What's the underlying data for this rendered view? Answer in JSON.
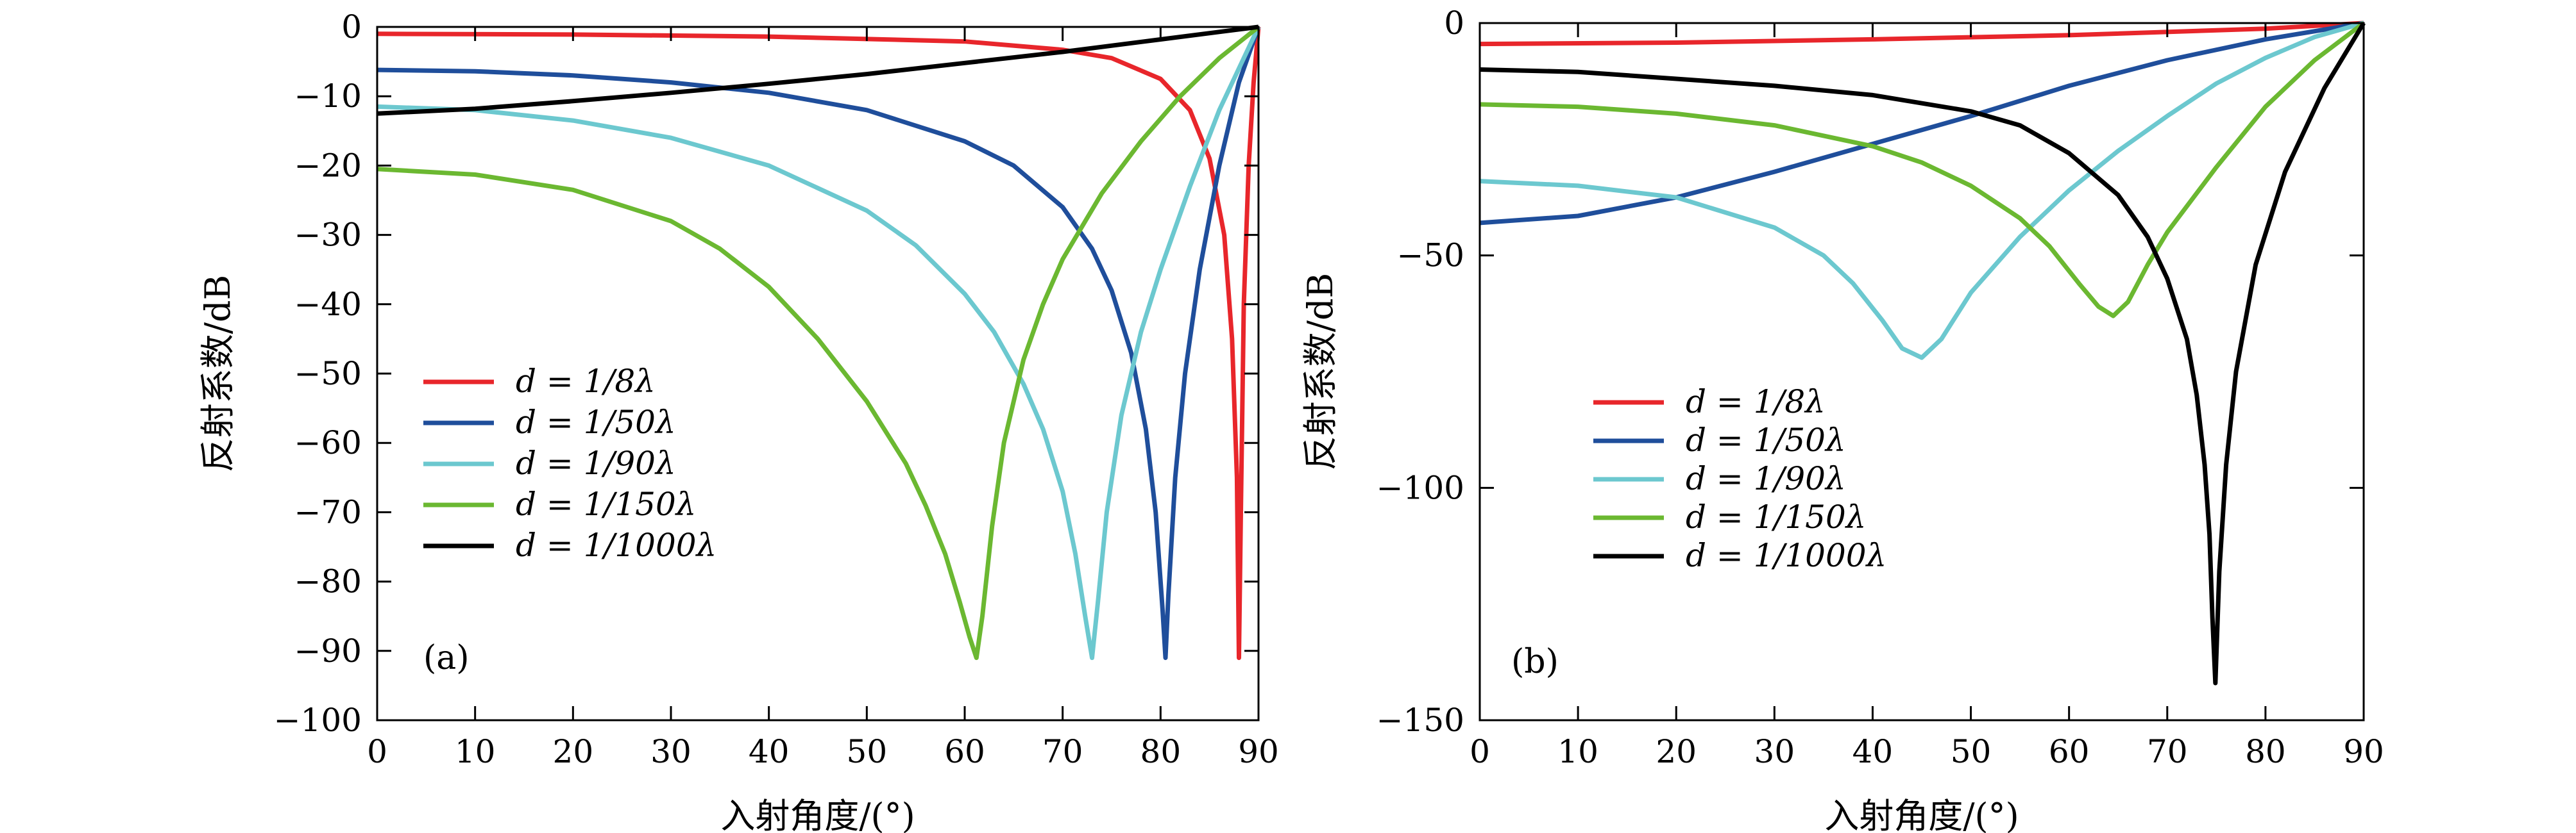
{
  "chart_data": [
    {
      "type": "line",
      "panel_label": "(a)",
      "xlabel": "入射角度/(°)",
      "ylabel": "反射系数/dB",
      "xlim": [
        0,
        90
      ],
      "ylim": [
        -100,
        0
      ],
      "xticks": [
        0,
        10,
        20,
        30,
        40,
        50,
        60,
        70,
        80,
        90
      ],
      "yticks": [
        0,
        -10,
        -20,
        -30,
        -40,
        -50,
        -60,
        -70,
        -80,
        -90,
        -100
      ],
      "xtick_labels": [
        "0",
        "10",
        "20",
        "30",
        "40",
        "50",
        "60",
        "70",
        "80",
        "90"
      ],
      "ytick_labels": [
        "0",
        "−10",
        "−20",
        "−30",
        "−40",
        "−50",
        "−60",
        "−70",
        "−80",
        "−90",
        "−100"
      ],
      "grid": false,
      "legend_position": "center-left",
      "series": [
        {
          "name": "d = 1/8λ",
          "color": "#e8262b",
          "x": [
            0,
            20,
            40,
            60,
            70,
            75,
            80,
            83,
            85,
            86.5,
            87.3,
            87.8,
            88.0,
            88.2,
            88.5,
            89,
            89.5,
            90
          ],
          "y": [
            -1,
            -1.1,
            -1.4,
            -2.1,
            -3.3,
            -4.5,
            -7.5,
            -12,
            -19,
            -30,
            -45,
            -65,
            -91,
            -70,
            -40,
            -20,
            -8,
            0
          ]
        },
        {
          "name": "d = 1/50λ",
          "color": "#1f4e9b",
          "x": [
            0,
            10,
            20,
            30,
            40,
            50,
            60,
            65,
            70,
            73,
            75,
            77,
            78.5,
            79.5,
            80.2,
            80.5,
            80.8,
            81.5,
            82.5,
            84,
            86,
            88,
            90
          ],
          "y": [
            -6.2,
            -6.4,
            -7,
            -8,
            -9.5,
            -12,
            -16.5,
            -20,
            -26,
            -32,
            -38,
            -47,
            -58,
            -70,
            -84,
            -91,
            -82,
            -65,
            -50,
            -35,
            -20,
            -8,
            0
          ]
        },
        {
          "name": "d = 1/90λ",
          "color": "#6cc8cf",
          "x": [
            0,
            10,
            20,
            30,
            40,
            50,
            55,
            60,
            63,
            66,
            68,
            70,
            71.3,
            72.3,
            73,
            73.6,
            74.5,
            76,
            78,
            80,
            83,
            86,
            90
          ],
          "y": [
            -11.5,
            -12,
            -13.5,
            -16,
            -20,
            -26.5,
            -31.5,
            -38.5,
            -44,
            -51.5,
            -58,
            -67,
            -76,
            -85,
            -91,
            -83,
            -70,
            -56,
            -44,
            -35,
            -23,
            -12,
            0
          ]
        },
        {
          "name": "d = 1/150λ",
          "color": "#6bb831",
          "x": [
            0,
            10,
            20,
            30,
            35,
            40,
            45,
            50,
            54,
            56,
            58,
            59.5,
            60.5,
            61.2,
            61.8,
            62.8,
            64,
            66,
            68,
            70,
            74,
            78,
            82,
            86,
            90
          ],
          "y": [
            -20.5,
            -21.3,
            -23.5,
            -28,
            -32,
            -37.5,
            -45,
            -54,
            -63,
            -69,
            -76,
            -83,
            -88,
            -91,
            -85,
            -72,
            -60,
            -48,
            -40,
            -33.5,
            -24,
            -16.5,
            -10,
            -4.5,
            0
          ]
        },
        {
          "name": "d = 1/1000λ",
          "color": "#000000",
          "x": [
            0,
            10,
            20,
            30,
            40,
            50,
            60,
            70,
            80,
            90
          ],
          "y": [
            -12.5,
            -11.8,
            -10.7,
            -9.5,
            -8.2,
            -6.8,
            -5.2,
            -3.6,
            -1.8,
            0
          ]
        }
      ]
    },
    {
      "type": "line",
      "panel_label": "(b)",
      "xlabel": "入射角度/(°)",
      "ylabel": "反射系数/dB",
      "xlim": [
        0,
        90
      ],
      "ylim": [
        -150,
        0
      ],
      "xticks": [
        0,
        10,
        20,
        30,
        40,
        50,
        60,
        70,
        80,
        90
      ],
      "yticks": [
        0,
        -50,
        -100,
        -150
      ],
      "xtick_labels": [
        "0",
        "10",
        "20",
        "30",
        "40",
        "50",
        "60",
        "70",
        "80",
        "90"
      ],
      "ytick_labels": [
        "0",
        "−50",
        "−100",
        "−150"
      ],
      "grid": false,
      "legend_position": "bottom-left",
      "series": [
        {
          "name": "d = 1/8λ",
          "color": "#e8262b",
          "x": [
            0,
            20,
            40,
            60,
            80,
            90
          ],
          "y": [
            -4.5,
            -4.2,
            -3.5,
            -2.6,
            -1.2,
            0
          ]
        },
        {
          "name": "d = 1/50λ",
          "color": "#1f4e9b",
          "x": [
            0,
            10,
            20,
            30,
            40,
            50,
            60,
            70,
            80,
            90
          ],
          "y": [
            -43,
            -41.5,
            -37.5,
            -32,
            -26,
            -20,
            -13.5,
            -8,
            -3.5,
            0
          ]
        },
        {
          "name": "d = 1/90λ",
          "color": "#6cc8cf",
          "x": [
            0,
            10,
            20,
            30,
            35,
            38,
            41,
            43,
            45,
            47,
            50,
            55,
            60,
            65,
            70,
            75,
            80,
            85,
            90
          ],
          "y": [
            -34,
            -35,
            -37.5,
            -44,
            -50,
            -56,
            -64,
            -70,
            -72,
            -68,
            -58,
            -46,
            -36,
            -27.5,
            -20,
            -13,
            -7.5,
            -3,
            0
          ]
        },
        {
          "name": "d = 1/150λ",
          "color": "#6bb831",
          "x": [
            0,
            10,
            20,
            30,
            40,
            45,
            50,
            55,
            58,
            61,
            63,
            64.5,
            66,
            68,
            70,
            75,
            80,
            85,
            90
          ],
          "y": [
            -17.5,
            -18,
            -19.5,
            -22,
            -26.5,
            -30,
            -35,
            -42,
            -48,
            -56,
            -61,
            -63,
            -60,
            -52,
            -45,
            -31,
            -18,
            -8,
            0
          ]
        },
        {
          "name": "d = 1/1000λ",
          "color": "#000000",
          "x": [
            0,
            10,
            20,
            30,
            40,
            50,
            55,
            60,
            65,
            68,
            70,
            72,
            73,
            73.8,
            74.3,
            74.6,
            74.9,
            75.3,
            76,
            77,
            79,
            82,
            86,
            90
          ],
          "y": [
            -10,
            -10.5,
            -12,
            -13.5,
            -15.5,
            -19,
            -22,
            -28,
            -37,
            -46,
            -55,
            -68,
            -80,
            -95,
            -110,
            -128,
            -142,
            -118,
            -95,
            -75,
            -52,
            -32,
            -14,
            0
          ]
        }
      ]
    }
  ]
}
